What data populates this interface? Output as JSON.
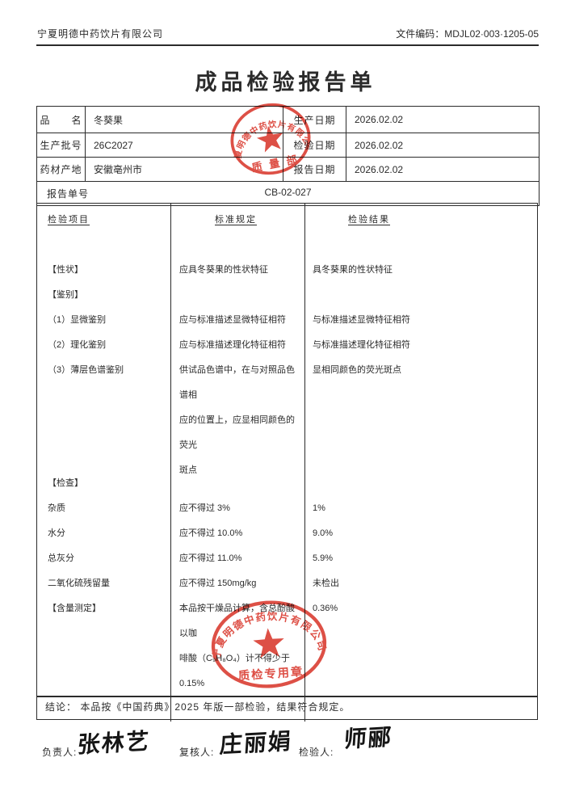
{
  "header": {
    "company": "宁夏明德中药饮片有限公司",
    "doc_code": "文件编码：MDJL02·003·1205-05"
  },
  "title": "成品检验报告单",
  "info": {
    "rows": [
      {
        "label": "品　　名",
        "value": "冬葵果",
        "label2": "生产日期",
        "value2": "2026.02.02"
      },
      {
        "label": "生产批号",
        "value": "26C2027",
        "label2": "检验日期",
        "value2": "2026.02.02"
      },
      {
        "label": "药材产地",
        "value": "安徽亳州市",
        "label2": "报告日期",
        "value2": "2026.02.02"
      }
    ],
    "report_no_label": "报告单号",
    "report_no": "CB-02-027"
  },
  "table": {
    "headers": [
      "检验项目",
      "标准规定",
      "检验结果"
    ],
    "rows": [
      {
        "item": "【性状】",
        "standard": "应具冬葵果的性状特征",
        "result": "具冬葵果的性状特征"
      },
      {
        "item": "【鉴别】",
        "standard": "",
        "result": ""
      },
      {
        "item": "（1）显微鉴别",
        "standard": "应与标准描述显微特征相符",
        "result": "与标准描述显微特征相符"
      },
      {
        "item": "（2）理化鉴别",
        "standard": "应与标准描述理化特征相符",
        "result": "与标准描述理化特征相符"
      },
      {
        "item": "（3）薄层色谱鉴别",
        "standard": [
          "供试品色谱中，在与对照品色谱相",
          "应的位置上，应显相同颜色的荧光",
          "斑点"
        ],
        "result": "显相同颜色的荧光斑点"
      },
      {
        "item": "【检查】",
        "standard": "",
        "result": ""
      },
      {
        "item": "杂质",
        "standard": "应不得过 3%",
        "result": "1%"
      },
      {
        "item": "水分",
        "standard": "应不得过 10.0%",
        "result": "9.0%"
      },
      {
        "item": "总灰分",
        "standard": "应不得过 11.0%",
        "result": "5.9%"
      },
      {
        "item": "二氧化硫残留量",
        "standard": "应不得过 150mg/kg",
        "result": "未检出"
      },
      {
        "item": "【含量测定】",
        "standard": [
          "本品按干燥品计算，含总酚酸以咖",
          "啡酸（C₉H₈O₄）计不得少于 0.15%"
        ],
        "result": "0.36%"
      }
    ]
  },
  "conclusion": "结论： 本品按《中国药典》2025 年版一部检验，结果符合规定。",
  "signatures": {
    "fields": [
      {
        "label": "负责人:",
        "name": "张林艺"
      },
      {
        "label": "复核人:",
        "name": "庄丽娟"
      },
      {
        "label": "检验人:",
        "name": "师郦"
      }
    ]
  },
  "stamps": {
    "top": {
      "ring_text": "宁夏明德中药饮片有限公司",
      "bottom_text": "质 量 部"
    },
    "bottom": {
      "ring_text": "宁夏明德中药饮片有限公司",
      "bottom_text": "质检专用章"
    },
    "color": "#d9372c"
  }
}
